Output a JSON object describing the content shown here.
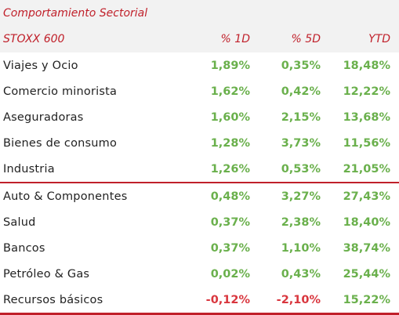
{
  "table": {
    "title": "Comportamiento Sectorial",
    "columns": {
      "name": "STOXX 600",
      "d1": "% 1D",
      "d5": "% 5D",
      "ytd": "YTD"
    },
    "rows": [
      {
        "name": "Viajes y Ocio",
        "d1": "1,89%",
        "d5": "0,35%",
        "ytd": "18,48%"
      },
      {
        "name": "Comercio minorista",
        "d1": "1,62%",
        "d5": "0,42%",
        "ytd": "12,22%"
      },
      {
        "name": "Aseguradoras",
        "d1": "1,60%",
        "d5": "2,15%",
        "ytd": "13,68%"
      },
      {
        "name": "Bienes de consumo",
        "d1": "1,28%",
        "d5": "3,73%",
        "ytd": "11,56%"
      },
      {
        "name": "Industria",
        "d1": "1,26%",
        "d5": "0,53%",
        "ytd": "21,05%"
      },
      {
        "name": "Auto & Componentes",
        "d1": "0,48%",
        "d5": "3,27%",
        "ytd": "27,43%"
      },
      {
        "name": "Salud",
        "d1": "0,37%",
        "d5": "2,38%",
        "ytd": "18,40%"
      },
      {
        "name": "Bancos",
        "d1": "0,37%",
        "d5": "1,10%",
        "ytd": "38,74%"
      },
      {
        "name": "Petróleo & Gas",
        "d1": "0,02%",
        "d5": "0,43%",
        "ytd": "25,44%"
      },
      {
        "name": "Recursos básicos",
        "d1": "-0,12%",
        "d5": "-2,10%",
        "ytd": "15,22%"
      }
    ]
  },
  "colors": {
    "accent": "#c0202a",
    "positive": "#6ab04c",
    "negative": "#d9363e",
    "header_bg": "#f2f2f2"
  }
}
